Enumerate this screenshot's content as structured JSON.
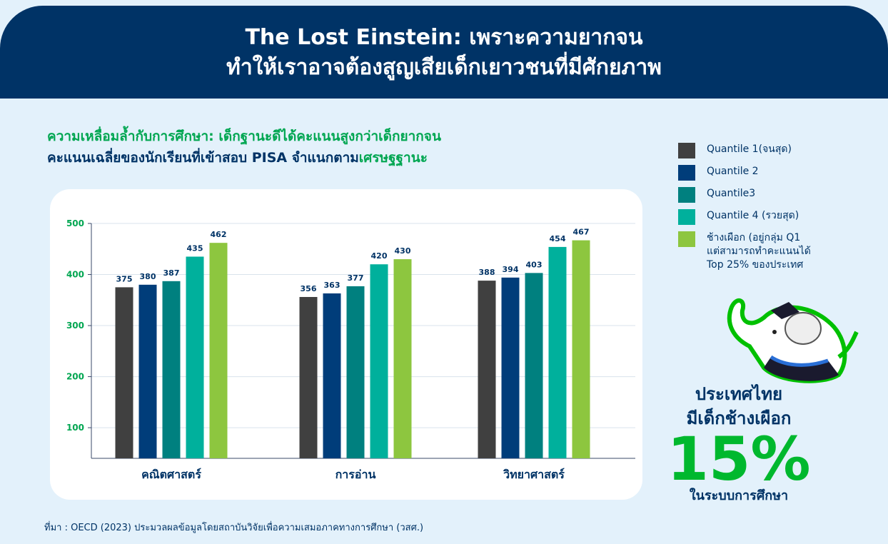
{
  "header": {
    "title_lines": [
      "The Lost Einstein: เพราะความยากจน",
      "ทำให้เราอาจต้องสูญเสียเด็กเยาวชนที่มีศักยภาพ"
    ]
  },
  "subtitle": {
    "line1": "ความเหลื่อมล้ำกับการศึกษา: เด็กฐานะดีได้คะแนนสูงกว่าเด็กยากจน",
    "line2_main": "คะแนนเฉลี่ยของนักเรียนที่เข้าสอบ PISA จำแนกตาม",
    "line2_highlight": "เศรษฐฐานะ"
  },
  "chart_data": {
    "type": "bar",
    "categories": [
      "คณิตศาสตร์",
      "การอ่าน",
      "วิทยาศาสตร์"
    ],
    "series": [
      {
        "name": "Quantile 1(จนสุด)",
        "color": "#404040",
        "values": [
          375,
          356,
          388
        ]
      },
      {
        "name": "Quantile 2",
        "color": "#003d7a",
        "values": [
          380,
          363,
          394
        ]
      },
      {
        "name": "Quantile3",
        "color": "#00807f",
        "values": [
          387,
          377,
          403
        ]
      },
      {
        "name": "Quantile 4 (รวยสุด)",
        "color": "#00b09c",
        "values": [
          435,
          420,
          454
        ]
      },
      {
        "name": "ช้างเผือก (อยู่กลุ่ม Q1\nแต่สามารถทำคะแนนได้\nTop 25% ของประเทศ",
        "color": "#8dc63f",
        "values": [
          462,
          430,
          467
        ]
      }
    ],
    "ylim": [
      40,
      500
    ],
    "yticks": [
      100,
      200,
      300,
      400,
      500
    ],
    "grid": true
  },
  "callout": {
    "line1": "ประเทศไทย",
    "line2": "มีเด็กช้างเผือก",
    "stat": "15%",
    "line3": "ในระบบการศึกษา"
  },
  "source": "ที่มา : OECD (2023) ประมวลผลข้อมูลโดยสถาบันวิจัยเพื่อความเสมอภาคทางการศึกษา (วสศ.)"
}
